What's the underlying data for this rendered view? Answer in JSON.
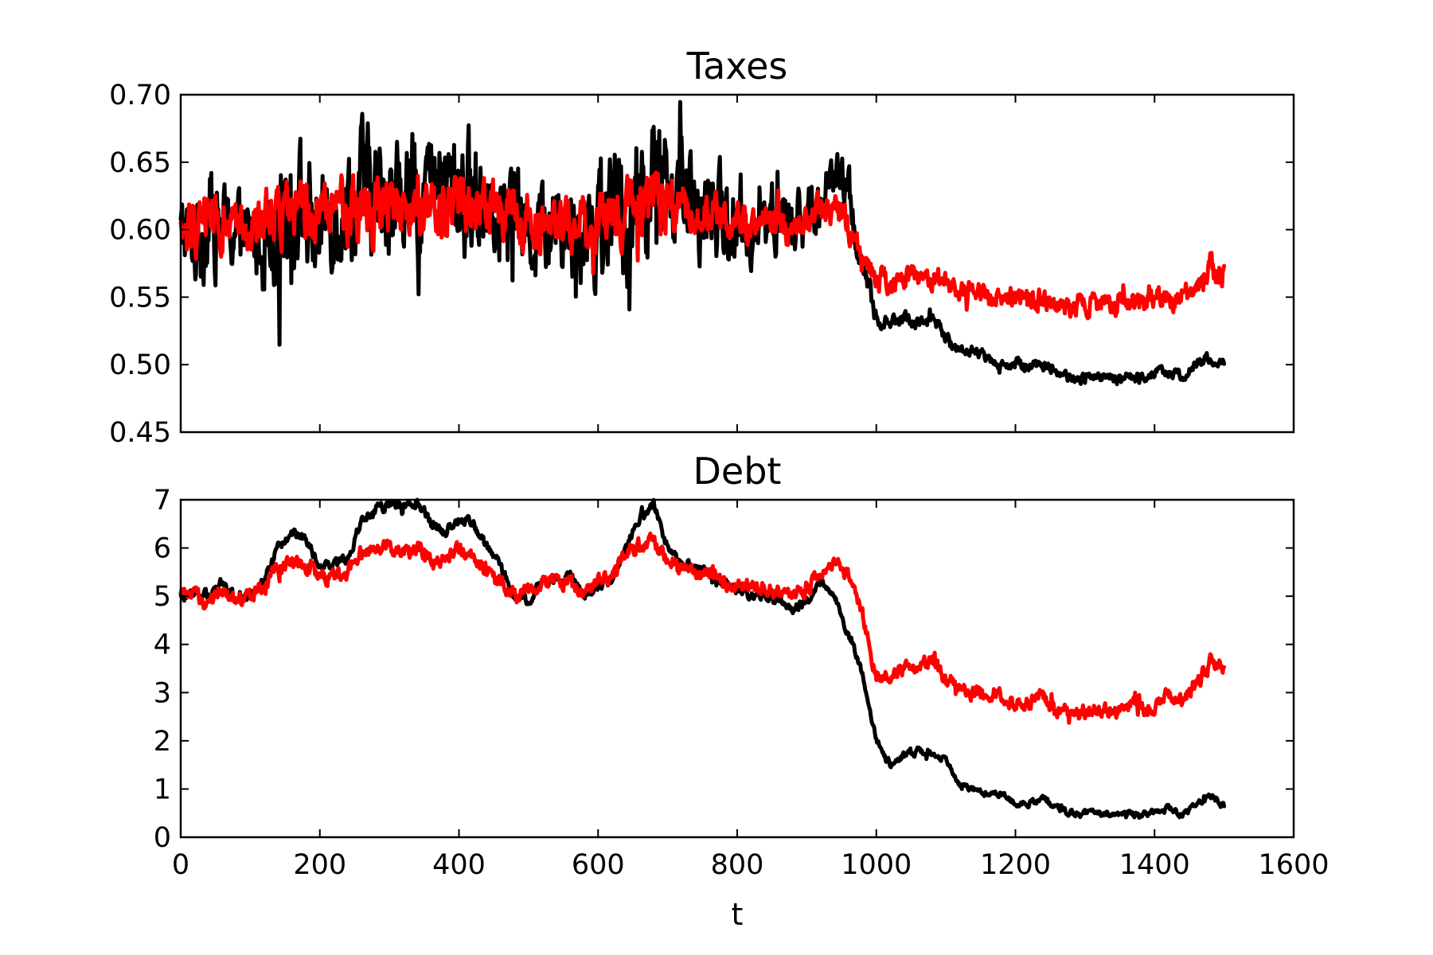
{
  "chart_data": [
    {
      "type": "line",
      "title": "Taxes",
      "xlabel": "",
      "ylabel": "",
      "xlim": [
        0,
        1600
      ],
      "ylim": [
        0.45,
        0.7
      ],
      "xticks": [
        0,
        200,
        400,
        600,
        800,
        1000,
        1200,
        1400,
        1600
      ],
      "yticks": [
        "0.45",
        "0.50",
        "0.55",
        "0.60",
        "0.65",
        "0.70"
      ],
      "show_xtick_labels": false,
      "grid": false,
      "series": [
        {
          "color": "#000000",
          "x": [
            0,
            20,
            40,
            60,
            80,
            100,
            120,
            140,
            160,
            180,
            200,
            220,
            240,
            260,
            280,
            300,
            320,
            340,
            360,
            380,
            400,
            420,
            440,
            460,
            480,
            500,
            520,
            540,
            560,
            580,
            600,
            620,
            640,
            660,
            680,
            700,
            720,
            740,
            760,
            780,
            800,
            820,
            840,
            860,
            880,
            900,
            920,
            940,
            960,
            980,
            1000,
            1020,
            1040,
            1060,
            1080,
            1100,
            1120,
            1140,
            1160,
            1180,
            1200,
            1220,
            1240,
            1260,
            1280,
            1300,
            1320,
            1340,
            1360,
            1380,
            1400,
            1420,
            1440,
            1460,
            1480,
            1500
          ],
          "values": [
            0.6,
            0.59,
            0.61,
            0.6,
            0.6,
            0.59,
            0.6,
            0.61,
            0.63,
            0.61,
            0.6,
            0.62,
            0.62,
            0.63,
            0.62,
            0.63,
            0.62,
            0.63,
            0.63,
            0.63,
            0.63,
            0.62,
            0.63,
            0.62,
            0.61,
            0.6,
            0.6,
            0.61,
            0.6,
            0.61,
            0.6,
            0.61,
            0.61,
            0.63,
            0.64,
            0.63,
            0.62,
            0.61,
            0.61,
            0.61,
            0.6,
            0.6,
            0.61,
            0.61,
            0.6,
            0.61,
            0.62,
            0.64,
            0.63,
            0.57,
            0.535,
            0.53,
            0.535,
            0.53,
            0.535,
            0.52,
            0.51,
            0.51,
            0.505,
            0.5,
            0.5,
            0.5,
            0.5,
            0.495,
            0.49,
            0.49,
            0.49,
            0.49,
            0.49,
            0.49,
            0.495,
            0.495,
            0.49,
            0.5,
            0.505,
            0.5
          ],
          "amplitudes": [
            0.018,
            0.025,
            0.03,
            0.025,
            0.02,
            0.02,
            0.03,
            0.035,
            0.035,
            0.035,
            0.03,
            0.03,
            0.035,
            0.035,
            0.035,
            0.035,
            0.03,
            0.035,
            0.03,
            0.03,
            0.035,
            0.035,
            0.03,
            0.03,
            0.03,
            0.025,
            0.025,
            0.025,
            0.03,
            0.03,
            0.03,
            0.035,
            0.035,
            0.035,
            0.035,
            0.03,
            0.03,
            0.025,
            0.025,
            0.025,
            0.02,
            0.02,
            0.02,
            0.02,
            0.02,
            0.02,
            0.015,
            0.012,
            0.015,
            0.01,
            0.005,
            0.004,
            0.004,
            0.004,
            0.004,
            0.003,
            0.003,
            0.003,
            0.003,
            0.003,
            0.003,
            0.003,
            0.003,
            0.003,
            0.003,
            0.003,
            0.003,
            0.003,
            0.003,
            0.003,
            0.003,
            0.003,
            0.003,
            0.003,
            0.003,
            0.003
          ]
        },
        {
          "color": "#ff0000",
          "x": [
            0,
            20,
            40,
            60,
            80,
            100,
            120,
            140,
            160,
            180,
            200,
            220,
            240,
            260,
            280,
            300,
            320,
            340,
            360,
            380,
            400,
            420,
            440,
            460,
            480,
            500,
            520,
            540,
            560,
            580,
            600,
            620,
            640,
            660,
            680,
            700,
            720,
            740,
            760,
            780,
            800,
            820,
            840,
            860,
            880,
            900,
            920,
            940,
            960,
            980,
            1000,
            1020,
            1040,
            1060,
            1080,
            1100,
            1120,
            1140,
            1160,
            1180,
            1200,
            1220,
            1240,
            1260,
            1280,
            1300,
            1320,
            1340,
            1360,
            1380,
            1400,
            1420,
            1440,
            1460,
            1480,
            1500
          ],
          "values": [
            0.6,
            0.6,
            0.61,
            0.6,
            0.6,
            0.6,
            0.61,
            0.61,
            0.62,
            0.61,
            0.61,
            0.615,
            0.615,
            0.62,
            0.62,
            0.62,
            0.62,
            0.62,
            0.62,
            0.62,
            0.62,
            0.615,
            0.62,
            0.615,
            0.61,
            0.6,
            0.6,
            0.605,
            0.6,
            0.61,
            0.605,
            0.61,
            0.61,
            0.62,
            0.63,
            0.62,
            0.615,
            0.61,
            0.61,
            0.61,
            0.605,
            0.6,
            0.605,
            0.605,
            0.6,
            0.605,
            0.61,
            0.61,
            0.6,
            0.58,
            0.565,
            0.56,
            0.565,
            0.565,
            0.565,
            0.56,
            0.555,
            0.555,
            0.55,
            0.55,
            0.55,
            0.55,
            0.55,
            0.545,
            0.54,
            0.545,
            0.545,
            0.545,
            0.545,
            0.545,
            0.55,
            0.55,
            0.55,
            0.56,
            0.565,
            0.57
          ],
          "amplitudes": [
            0.012,
            0.015,
            0.015,
            0.015,
            0.012,
            0.012,
            0.015,
            0.018,
            0.018,
            0.018,
            0.015,
            0.015,
            0.018,
            0.018,
            0.018,
            0.018,
            0.015,
            0.018,
            0.015,
            0.015,
            0.018,
            0.018,
            0.015,
            0.015,
            0.015,
            0.012,
            0.012,
            0.012,
            0.015,
            0.015,
            0.015,
            0.018,
            0.018,
            0.018,
            0.018,
            0.015,
            0.015,
            0.012,
            0.012,
            0.012,
            0.01,
            0.01,
            0.01,
            0.01,
            0.01,
            0.01,
            0.01,
            0.01,
            0.01,
            0.008,
            0.007,
            0.007,
            0.007,
            0.007,
            0.007,
            0.006,
            0.006,
            0.006,
            0.006,
            0.006,
            0.006,
            0.006,
            0.006,
            0.006,
            0.006,
            0.006,
            0.006,
            0.006,
            0.006,
            0.006,
            0.006,
            0.006,
            0.006,
            0.007,
            0.008,
            0.008
          ]
        }
      ]
    },
    {
      "type": "line",
      "title": "Debt",
      "xlabel": "t",
      "ylabel": "",
      "xlim": [
        0,
        1600
      ],
      "ylim": [
        0,
        7
      ],
      "xticks": [
        0,
        200,
        400,
        600,
        800,
        1000,
        1200,
        1400,
        1600
      ],
      "yticks": [
        "0",
        "1",
        "2",
        "3",
        "4",
        "5",
        "6",
        "7"
      ],
      "show_xtick_labels": true,
      "grid": false,
      "series": [
        {
          "color": "#000000",
          "x": [
            0,
            20,
            40,
            60,
            80,
            100,
            120,
            140,
            160,
            180,
            200,
            220,
            240,
            260,
            280,
            300,
            320,
            340,
            360,
            380,
            400,
            420,
            440,
            460,
            480,
            500,
            520,
            540,
            560,
            580,
            600,
            620,
            640,
            660,
            680,
            700,
            720,
            740,
            760,
            780,
            800,
            820,
            840,
            860,
            880,
            900,
            920,
            940,
            960,
            980,
            1000,
            1020,
            1040,
            1060,
            1080,
            1100,
            1120,
            1140,
            1160,
            1180,
            1200,
            1220,
            1240,
            1260,
            1280,
            1300,
            1320,
            1340,
            1360,
            1380,
            1400,
            1420,
            1440,
            1460,
            1480,
            1500
          ],
          "values": [
            5.0,
            5.1,
            5.0,
            5.3,
            4.9,
            5.0,
            5.4,
            6.0,
            6.3,
            6.2,
            5.6,
            5.7,
            5.8,
            6.6,
            6.8,
            6.9,
            6.8,
            7.0,
            6.5,
            6.3,
            6.6,
            6.5,
            6.0,
            5.6,
            5.0,
            4.9,
            5.3,
            5.3,
            5.4,
            5.0,
            5.2,
            5.3,
            6.0,
            6.6,
            6.9,
            6.0,
            5.7,
            5.6,
            5.5,
            5.3,
            5.1,
            5.0,
            5.0,
            5.0,
            4.7,
            4.9,
            5.3,
            5.0,
            4.2,
            3.4,
            2.0,
            1.5,
            1.7,
            1.8,
            1.7,
            1.6,
            1.1,
            1.0,
            0.9,
            0.9,
            0.7,
            0.7,
            0.8,
            0.6,
            0.5,
            0.5,
            0.5,
            0.5,
            0.5,
            0.45,
            0.5,
            0.6,
            0.45,
            0.7,
            0.85,
            0.65
          ],
          "amplitudes": [
            0.08,
            0.08,
            0.08,
            0.08,
            0.08,
            0.08,
            0.08,
            0.08,
            0.08,
            0.08,
            0.08,
            0.08,
            0.08,
            0.08,
            0.08,
            0.08,
            0.08,
            0.08,
            0.08,
            0.08,
            0.08,
            0.08,
            0.08,
            0.08,
            0.08,
            0.08,
            0.08,
            0.08,
            0.08,
            0.08,
            0.08,
            0.08,
            0.08,
            0.08,
            0.08,
            0.08,
            0.08,
            0.08,
            0.08,
            0.08,
            0.08,
            0.08,
            0.08,
            0.08,
            0.08,
            0.08,
            0.06,
            0.06,
            0.06,
            0.06,
            0.06,
            0.06,
            0.06,
            0.06,
            0.06,
            0.05,
            0.05,
            0.05,
            0.05,
            0.05,
            0.05,
            0.05,
            0.05,
            0.05,
            0.05,
            0.05,
            0.05,
            0.05,
            0.05,
            0.05,
            0.05,
            0.05,
            0.05,
            0.05,
            0.05,
            0.05
          ]
        },
        {
          "color": "#ff0000",
          "x": [
            0,
            20,
            40,
            60,
            80,
            100,
            120,
            140,
            160,
            180,
            200,
            220,
            240,
            260,
            280,
            300,
            320,
            340,
            360,
            380,
            400,
            420,
            440,
            460,
            480,
            500,
            520,
            540,
            560,
            580,
            600,
            620,
            640,
            660,
            680,
            700,
            720,
            740,
            760,
            780,
            800,
            820,
            840,
            860,
            880,
            900,
            920,
            940,
            960,
            980,
            1000,
            1020,
            1040,
            1060,
            1080,
            1100,
            1120,
            1140,
            1160,
            1180,
            1200,
            1220,
            1240,
            1260,
            1280,
            1300,
            1320,
            1340,
            1360,
            1380,
            1400,
            1420,
            1440,
            1460,
            1480,
            1500
          ],
          "values": [
            5.0,
            5.0,
            4.9,
            5.1,
            4.9,
            5.0,
            5.3,
            5.6,
            5.7,
            5.6,
            5.3,
            5.5,
            5.5,
            5.9,
            6.0,
            6.0,
            5.9,
            6.0,
            5.8,
            5.8,
            6.0,
            5.9,
            5.5,
            5.3,
            5.0,
            5.1,
            5.3,
            5.3,
            5.3,
            5.0,
            5.3,
            5.4,
            5.9,
            6.0,
            6.2,
            5.8,
            5.6,
            5.5,
            5.5,
            5.3,
            5.2,
            5.2,
            5.2,
            5.1,
            5.0,
            5.2,
            5.4,
            5.7,
            5.4,
            4.7,
            3.3,
            3.4,
            3.5,
            3.5,
            3.7,
            3.2,
            3.1,
            3.0,
            3.0,
            2.9,
            2.8,
            2.8,
            2.9,
            2.6,
            2.5,
            2.6,
            2.7,
            2.6,
            2.7,
            2.7,
            2.7,
            3.0,
            2.8,
            3.2,
            3.6,
            3.6
          ],
          "amplitudes": [
            0.12,
            0.12,
            0.12,
            0.12,
            0.12,
            0.12,
            0.12,
            0.12,
            0.12,
            0.12,
            0.12,
            0.12,
            0.12,
            0.12,
            0.12,
            0.12,
            0.12,
            0.12,
            0.12,
            0.12,
            0.12,
            0.12,
            0.12,
            0.12,
            0.12,
            0.12,
            0.12,
            0.12,
            0.12,
            0.12,
            0.12,
            0.12,
            0.12,
            0.12,
            0.12,
            0.12,
            0.12,
            0.12,
            0.12,
            0.12,
            0.12,
            0.12,
            0.12,
            0.12,
            0.12,
            0.12,
            0.1,
            0.1,
            0.1,
            0.1,
            0.12,
            0.12,
            0.12,
            0.12,
            0.12,
            0.12,
            0.12,
            0.12,
            0.12,
            0.12,
            0.12,
            0.12,
            0.12,
            0.12,
            0.12,
            0.12,
            0.12,
            0.12,
            0.12,
            0.12,
            0.12,
            0.12,
            0.12,
            0.12,
            0.12,
            0.12
          ]
        }
      ]
    }
  ]
}
